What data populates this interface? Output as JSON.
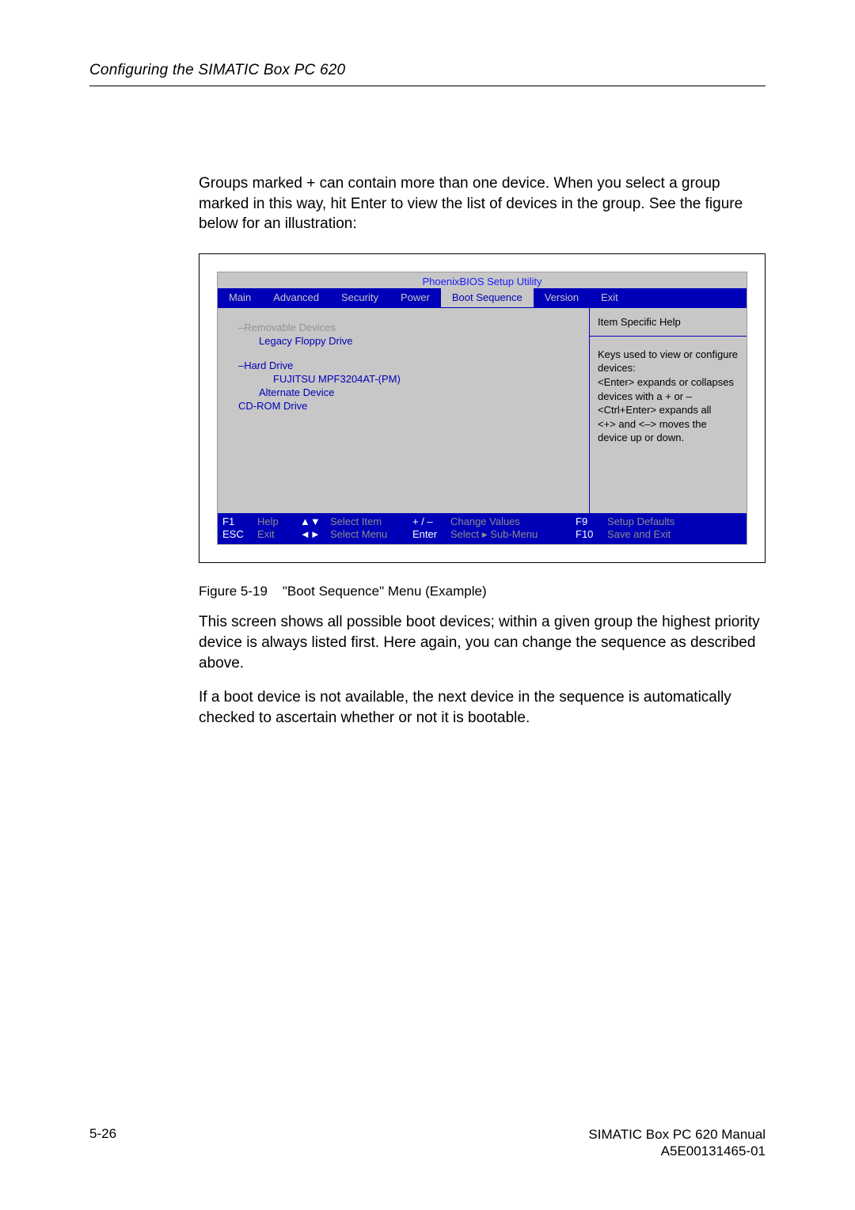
{
  "header": {
    "title": "Configuring the SIMATIC Box PC 620"
  },
  "intro": {
    "p1": "Groups marked + can contain more than one device. When you select a group marked in this way, hit Enter to view the list of devices in the group. See the figure below for an illustration:"
  },
  "bios": {
    "utility_title": "PhoenixBIOS Setup Utility",
    "tabs": {
      "main": "Main",
      "advanced": "Advanced",
      "security": "Security",
      "power": "Power",
      "boot": "Boot Sequence",
      "version": "Version",
      "exit": "Exit"
    },
    "left": {
      "removable_prefix": "–",
      "removable": "Removable Devices",
      "legacy": "Legacy Floppy Drive",
      "hard_prefix": "–",
      "hard": "Hard Drive",
      "fujitsu": "FUJITSU MPF3204AT-(PM)",
      "alternate": "Alternate Device",
      "cdrom": "CD-ROM Drive"
    },
    "help": {
      "title": "Item Specific Help",
      "body": "Keys used to view or configure devices:\n<Enter> expands or collapses devices with a + or –\n<Ctrl+Enter>  expands all\n<+> and <–>  moves the device up or down."
    },
    "footer": {
      "f1": "F1",
      "esc": "ESC",
      "help": "Help",
      "exit": "Exit",
      "select_item": "Select Item",
      "select_menu": "Select Menu",
      "plusminus": "+ / –",
      "enter": "Enter",
      "change_values": "Change Values",
      "select_sub": "Select    Sub-Menu",
      "f9": "F9",
      "f10": "F10",
      "setup_defaults": "Setup Defaults",
      "save_exit": "Save and Exit"
    }
  },
  "caption": {
    "label": "Figure 5-19",
    "text": "\"Boot Sequence\" Menu (Example)"
  },
  "after": {
    "p1": "This screen shows all possible boot devices; within a given group the highest priority device is always listed first. Here again, you can change the sequence as described above.",
    "p2": "If a boot device is not available, the next device in the sequence is automatically checked to ascertain whether or not it is bootable."
  },
  "pagefoot": {
    "left": "5-26",
    "right1": "SIMATIC Box PC 620  Manual",
    "right2": "A5E00131465-01"
  }
}
